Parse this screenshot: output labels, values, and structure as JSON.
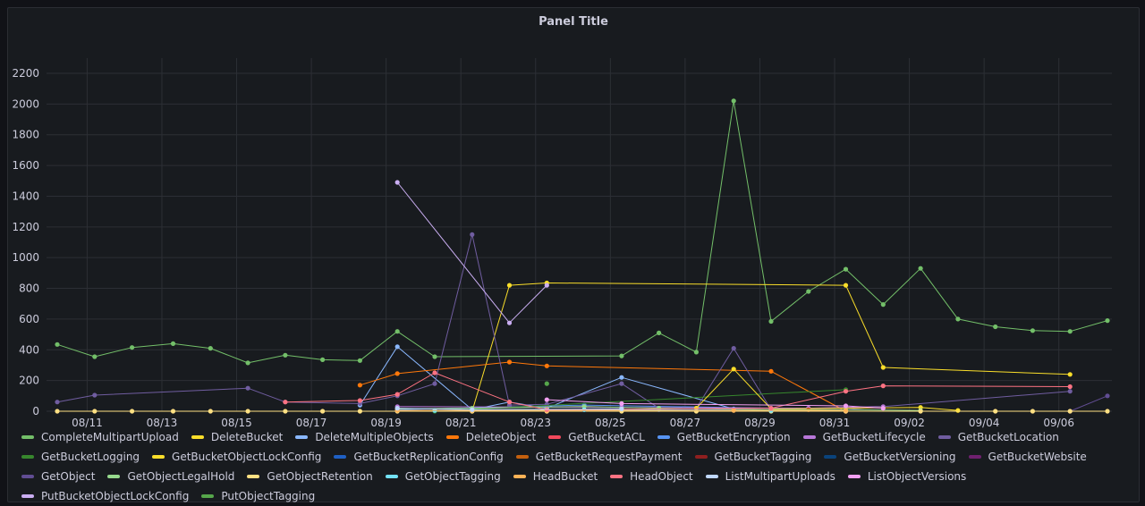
{
  "panel": {
    "title": "Panel Title"
  },
  "chart_data": {
    "type": "line",
    "title": "Panel Title",
    "x_tick_labels": [
      "08/11",
      "08/13",
      "08/15",
      "08/17",
      "08/19",
      "08/21",
      "08/23",
      "08/25",
      "08/27",
      "08/29",
      "08/31",
      "09/02",
      "09/04",
      "09/06"
    ],
    "x_tick_dates": [
      11,
      13,
      15,
      17,
      19,
      21,
      23,
      25,
      27,
      29,
      31,
      33,
      35,
      37
    ],
    "xlim": [
      10.2,
      38.3
    ],
    "x_note": "x values are days counted from Aug 1 (Aug 31 = 31, Sep 1 = 32)",
    "ylim": [
      0,
      2200
    ],
    "y_ticks": [
      0,
      200,
      400,
      600,
      800,
      1000,
      1200,
      1400,
      1600,
      1800,
      2000,
      2200
    ],
    "grid": true,
    "legend_position": "bottom",
    "series": [
      {
        "name": "CompleteMultipartUpload",
        "color": "#73bf69",
        "points": [
          [
            10.2,
            435
          ],
          [
            11.2,
            355
          ],
          [
            12.2,
            415
          ],
          [
            13.3,
            440
          ],
          [
            14.3,
            410
          ],
          [
            15.3,
            315
          ],
          [
            16.3,
            365
          ],
          [
            17.3,
            335
          ],
          [
            18.3,
            330
          ],
          [
            19.3,
            520
          ],
          [
            20.3,
            355
          ],
          [
            25.3,
            360
          ],
          [
            26.3,
            510
          ],
          [
            27.3,
            385
          ],
          [
            28.3,
            2020
          ],
          [
            29.3,
            585
          ],
          [
            30.3,
            780
          ],
          [
            31.3,
            925
          ],
          [
            32.3,
            695
          ],
          [
            33.3,
            930
          ],
          [
            34.3,
            600
          ],
          [
            35.3,
            550
          ],
          [
            36.3,
            525
          ],
          [
            37.3,
            520
          ],
          [
            38.3,
            590
          ]
        ]
      },
      {
        "name": "DeleteBucket",
        "color": "#fade2a",
        "points": [
          [
            21.3,
            0
          ],
          [
            22.3,
            820
          ],
          [
            23.3,
            835
          ],
          [
            31.3,
            820
          ],
          [
            32.3,
            285
          ],
          [
            37.3,
            240
          ]
        ]
      },
      {
        "name": "DeleteMultipleObjects",
        "color": "#8ab8ff",
        "points": [
          [
            18.3,
            40
          ],
          [
            19.3,
            420
          ],
          [
            21.3,
            10
          ],
          [
            22.3,
            60
          ],
          [
            23.3,
            20
          ],
          [
            25.3,
            220
          ],
          [
            28.3,
            15
          ]
        ]
      },
      {
        "name": "DeleteObject",
        "color": "#ff780a",
        "points": [
          [
            18.3,
            170
          ],
          [
            19.3,
            245
          ],
          [
            22.3,
            320
          ],
          [
            23.3,
            295
          ],
          [
            29.3,
            260
          ],
          [
            31.3,
            0
          ]
        ]
      },
      {
        "name": "GetBucketACL",
        "color": "#f2495c",
        "points": [
          [
            19.3,
            5
          ],
          [
            23.3,
            5
          ],
          [
            31.3,
            5
          ]
        ]
      },
      {
        "name": "GetBucketEncryption",
        "color": "#5794f2",
        "points": [
          [
            19.3,
            10
          ],
          [
            24.3,
            40
          ],
          [
            29.3,
            20
          ]
        ]
      },
      {
        "name": "GetBucketLifecycle",
        "color": "#b877d9",
        "points": [
          [
            19.3,
            30
          ],
          [
            25.3,
            25
          ],
          [
            30.3,
            20
          ],
          [
            32.3,
            30
          ]
        ]
      },
      {
        "name": "GetBucketLocation",
        "color": "#705da0",
        "points": [
          [
            10.2,
            60
          ],
          [
            11.2,
            105
          ],
          [
            15.3,
            150
          ],
          [
            16.3,
            60
          ],
          [
            18.3,
            50
          ],
          [
            19.3,
            100
          ],
          [
            20.3,
            180
          ],
          [
            21.3,
            1150
          ],
          [
            22.3,
            40
          ],
          [
            23.3,
            45
          ],
          [
            25.3,
            180
          ],
          [
            26.3,
            20
          ],
          [
            27.3,
            20
          ],
          [
            28.3,
            410
          ],
          [
            29.3,
            10
          ],
          [
            31.3,
            10
          ],
          [
            37.3,
            130
          ]
        ]
      },
      {
        "name": "GetBucketLogging",
        "color": "#37872d",
        "points": [
          [
            20.3,
            0
          ],
          [
            31.3,
            140
          ]
        ]
      },
      {
        "name": "GetBucketObjectLockConfig",
        "color": "#fade2a",
        "points": [
          [
            27.3,
            20
          ],
          [
            28.3,
            275
          ],
          [
            29.3,
            15
          ],
          [
            33.3,
            25
          ],
          [
            34.3,
            5
          ]
        ]
      },
      {
        "name": "GetBucketReplicationConfig",
        "color": "#1f60c4",
        "points": [
          [
            19.3,
            5
          ],
          [
            26.3,
            10
          ],
          [
            31.3,
            5
          ]
        ]
      },
      {
        "name": "GetBucketRequestPayment",
        "color": "#c4600e",
        "points": [
          [
            30.3,
            10
          ],
          [
            31.3,
            0
          ]
        ]
      },
      {
        "name": "GetBucketTagging",
        "color": "#8f1f1f",
        "points": [
          [
            23.3,
            0
          ],
          [
            31.3,
            0
          ]
        ]
      },
      {
        "name": "GetBucketVersioning",
        "color": "#0a437c",
        "points": [
          [
            19.3,
            0
          ],
          [
            29.3,
            0
          ]
        ]
      },
      {
        "name": "GetBucketWebsite",
        "color": "#6f206f",
        "points": [
          [
            23.3,
            0
          ],
          [
            31.3,
            0
          ]
        ]
      },
      {
        "name": "GetObject",
        "color": "#614d93",
        "points": [
          [
            37.3,
            0
          ],
          [
            38.3,
            100
          ]
        ]
      },
      {
        "name": "GetObjectLegalHold",
        "color": "#96d98d",
        "points": [
          [
            19.3,
            15
          ],
          [
            21.3,
            20
          ],
          [
            24.3,
            30
          ],
          [
            26.3,
            20
          ],
          [
            29.3,
            10
          ],
          [
            31.3,
            10
          ],
          [
            33.3,
            5
          ]
        ]
      },
      {
        "name": "GetObjectRetention",
        "color": "#ffe083",
        "points": [
          [
            10.2,
            0
          ],
          [
            11.2,
            0
          ],
          [
            12.2,
            0
          ],
          [
            13.3,
            0
          ],
          [
            14.3,
            0
          ],
          [
            15.3,
            0
          ],
          [
            16.3,
            0
          ],
          [
            17.3,
            0
          ],
          [
            18.3,
            0
          ],
          [
            19.3,
            0
          ],
          [
            21.3,
            0
          ],
          [
            23.3,
            0
          ],
          [
            25.3,
            0
          ],
          [
            27.3,
            0
          ],
          [
            29.3,
            0
          ],
          [
            31.3,
            0
          ],
          [
            33.3,
            0
          ],
          [
            35.3,
            0
          ],
          [
            36.3,
            0
          ],
          [
            37.3,
            0
          ],
          [
            38.3,
            0
          ]
        ]
      },
      {
        "name": "GetObjectTagging",
        "color": "#73e2f7",
        "points": [
          [
            20.3,
            5
          ],
          [
            24.3,
            10
          ],
          [
            29.3,
            5
          ]
        ]
      },
      {
        "name": "HeadBucket",
        "color": "#ffb357",
        "points": [
          [
            19.3,
            5
          ],
          [
            21.3,
            5
          ],
          [
            23.3,
            5
          ],
          [
            28.3,
            5
          ],
          [
            31.3,
            5
          ]
        ]
      },
      {
        "name": "HeadObject",
        "color": "#ff7383",
        "points": [
          [
            16.3,
            60
          ],
          [
            18.3,
            70
          ],
          [
            19.3,
            110
          ],
          [
            20.3,
            250
          ],
          [
            22.3,
            60
          ],
          [
            23.3,
            10
          ],
          [
            29.3,
            20
          ],
          [
            31.3,
            130
          ],
          [
            32.3,
            165
          ],
          [
            37.3,
            160
          ]
        ]
      },
      {
        "name": "ListMultipartUploads",
        "color": "#c0d8ff",
        "points": [
          [
            19.3,
            20
          ],
          [
            21.3,
            10
          ],
          [
            25.3,
            15
          ]
        ]
      },
      {
        "name": "ListObjectVersions",
        "color": "#f2a0f2",
        "points": [
          [
            23.3,
            75
          ],
          [
            25.3,
            50
          ],
          [
            31.3,
            35
          ],
          [
            32.3,
            20
          ]
        ]
      },
      {
        "name": "PutBucketObjectLockConfig",
        "color": "#caaef2",
        "points": [
          [
            19.3,
            1490
          ],
          [
            22.3,
            575
          ],
          [
            23.3,
            820
          ]
        ]
      },
      {
        "name": "PutObjectTagging",
        "color": "#56a64b",
        "points": [
          [
            23.3,
            180
          ]
        ]
      }
    ]
  }
}
